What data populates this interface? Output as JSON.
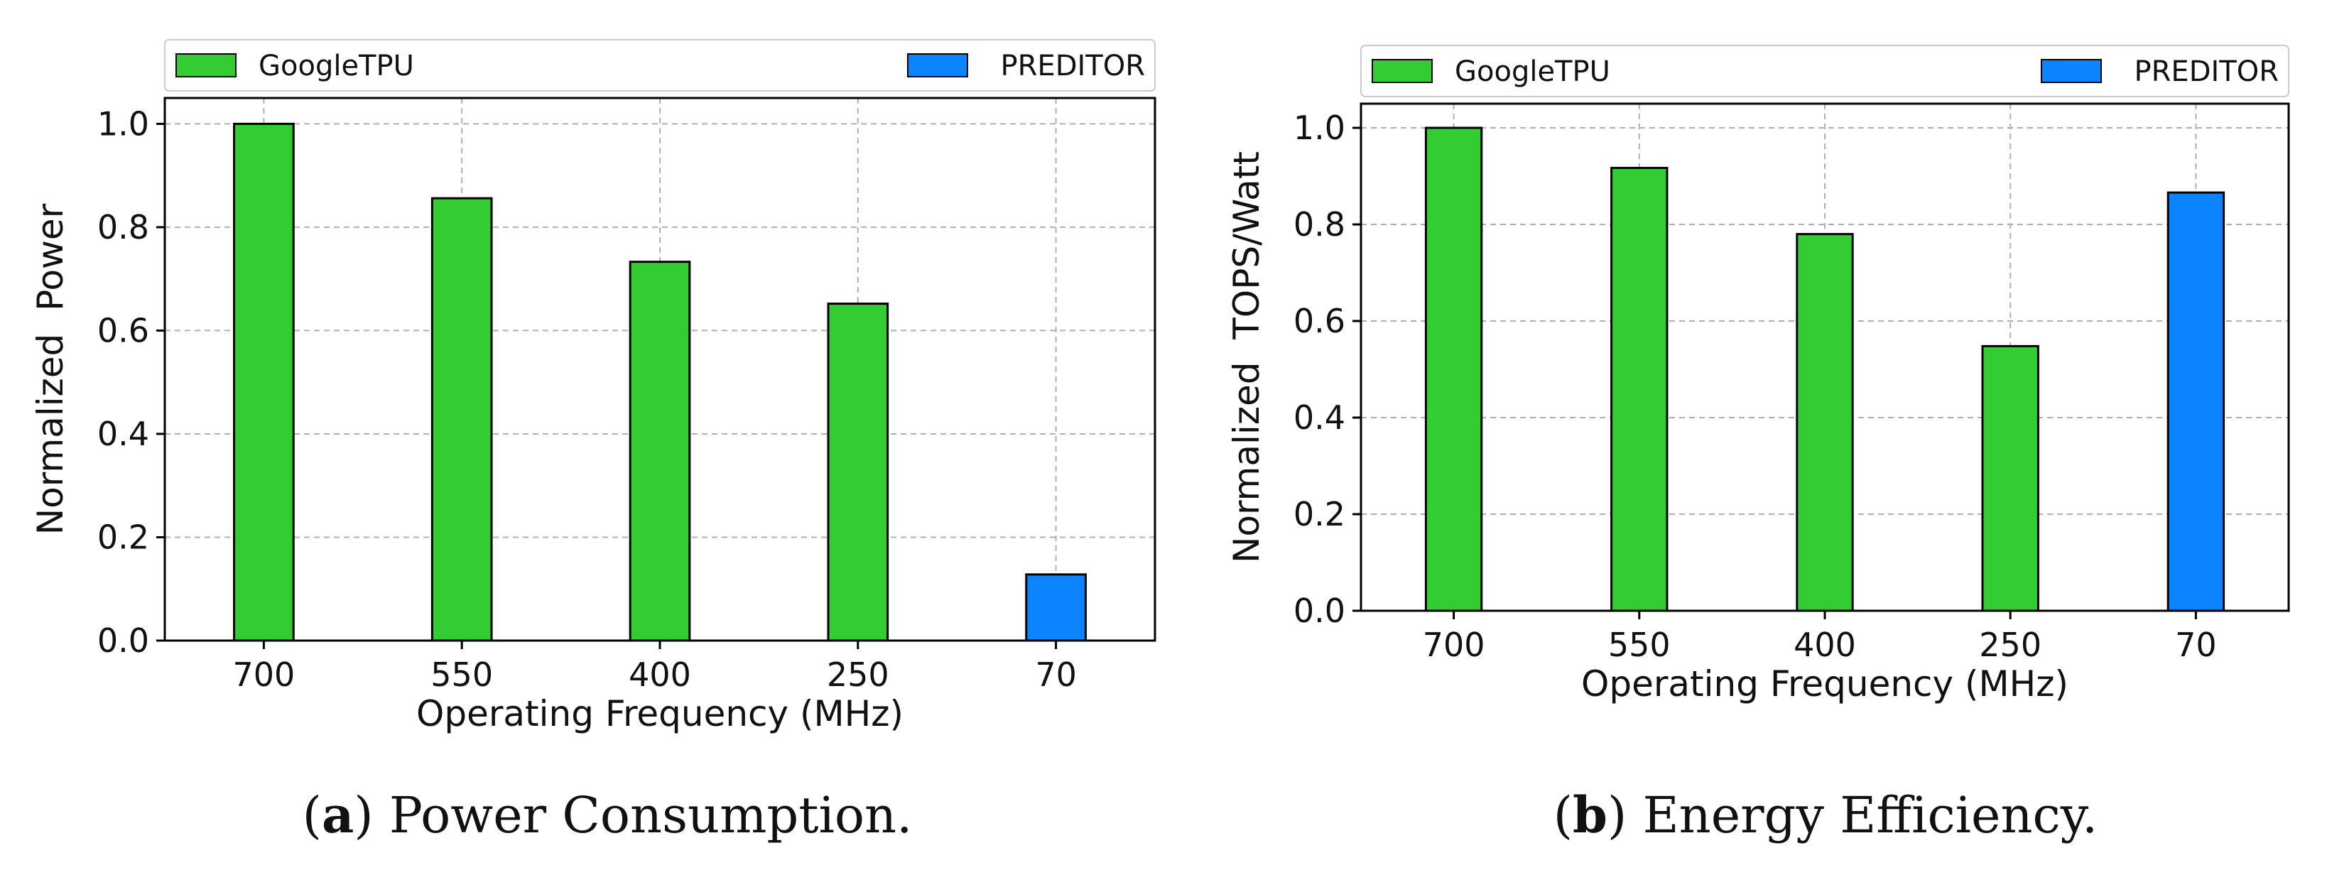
{
  "chart_data": [
    {
      "type": "bar",
      "title": "",
      "caption_letter": "a",
      "caption_text": "Power Consumption.",
      "categories": [
        "700",
        "550",
        "400",
        "250",
        "70"
      ],
      "series": [
        {
          "name": "GoogleTPU",
          "color": "#33cc33",
          "values": [
            1.0,
            0.856,
            0.733,
            0.652,
            null
          ]
        },
        {
          "name": "PREDITOR",
          "color": "#0a84ff",
          "values": [
            null,
            null,
            null,
            null,
            0.128
          ]
        }
      ],
      "xlabel": "Operating Frequency (MHz)",
      "ylabel": "Normalized  Power",
      "ylim": [
        0,
        1.05
      ],
      "yticks": [
        "0.0",
        "0.2",
        "0.4",
        "0.6",
        "0.8",
        "1.0"
      ],
      "grid": true,
      "legend_position": "top"
    },
    {
      "type": "bar",
      "title": "",
      "caption_letter": "b",
      "caption_text": "Energy Efficiency.",
      "categories": [
        "700",
        "550",
        "400",
        "250",
        "70"
      ],
      "series": [
        {
          "name": "GoogleTPU",
          "color": "#33cc33",
          "values": [
            1.0,
            0.917,
            0.78,
            0.548,
            null
          ]
        },
        {
          "name": "PREDITOR",
          "color": "#0a84ff",
          "values": [
            null,
            null,
            null,
            null,
            0.866
          ]
        }
      ],
      "xlabel": "Operating Frequency (MHz)",
      "ylabel": "Normalized  TOPS/Watt",
      "ylim": [
        0,
        1.05
      ],
      "yticks": [
        "0.0",
        "0.2",
        "0.4",
        "0.6",
        "0.8",
        "1.0"
      ],
      "grid": true,
      "legend_position": "top"
    }
  ]
}
